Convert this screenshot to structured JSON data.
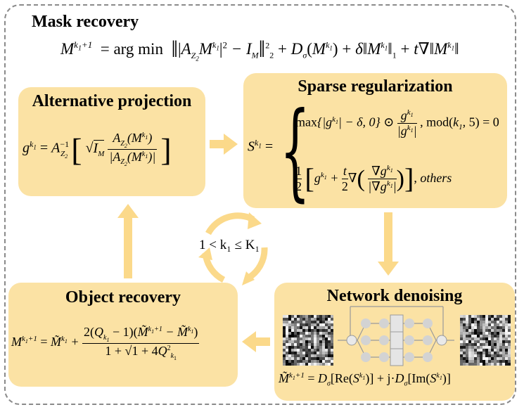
{
  "mask_recovery": {
    "title": "Mask recovery",
    "equation": "M^{k1+1} = arg min ‖ |A_{Z2} M^{k1}|² − I_M ‖²₂ + D_σ(M^{k1}) + δ‖M^{k1}‖₁ + t∇‖M^{k1}‖"
  },
  "alternative_projection": {
    "title": "Alternative projection",
    "equation": "g^{k1} = A^{-1}_{Z2} [ √I_M · A_{Z2}(M^{k1}) / |A_{Z2}(M^{k1})| ]"
  },
  "sparse_regularization": {
    "title": "Sparse regularization",
    "case1": "max{|g^{k1}| − δ, 0} ⊙ g^{k1}/|g^{k1}|, mod(k1, 5) = 0",
    "case2": "1/2 [ g^{k1} + t/2 ∇( ∇g^{k1} / |∇g^{k1}| ) ], others",
    "lhs": "S^{k1} ="
  },
  "object_recovery": {
    "title": "Object recovery",
    "equation": "M^{k1+1} = M̃^{k1} + 2(Q_{k1} − 1)(M̃^{k1+1} − M̃^{k1}) / (1 + √(1 + 4Q²_{k1}))"
  },
  "network_denoising": {
    "title": "Network denoising",
    "equation": "M̃^{k1+1} = D_σ[Re(S^{k1})] + j·D_σ[Im(S^{k1})]"
  },
  "cycle": {
    "label": "1 < k₁ ≤ K₁"
  },
  "colors": {
    "box_fill": "#fbe2a4",
    "arrow": "#fbd98a",
    "frame": "#8a8a8a"
  }
}
